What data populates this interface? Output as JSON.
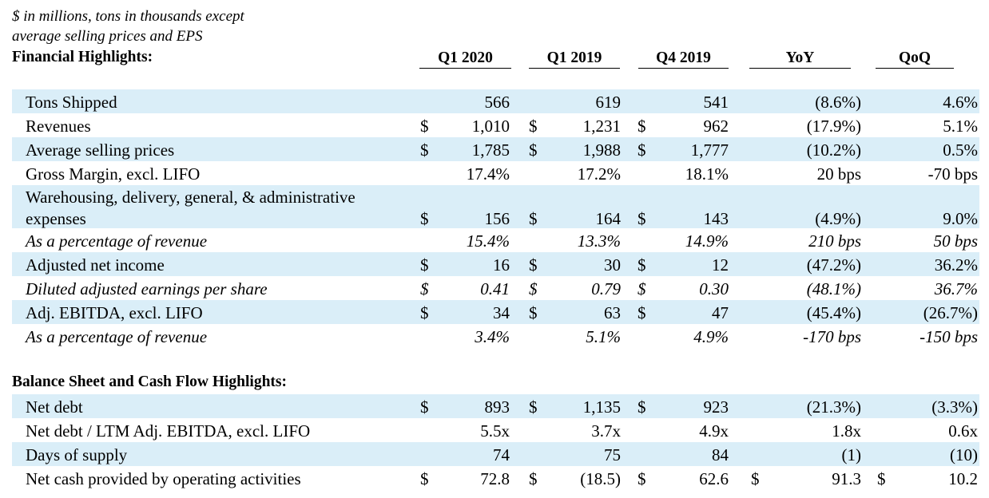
{
  "header": {
    "note_line1": "$ in millions, tons in thousands except",
    "note_line2": "average selling prices and EPS",
    "section1_title": "Financial Highlights:",
    "section2_title": "Balance Sheet and Cash Flow Highlights:",
    "columns": [
      "Q1 2020",
      "Q1 2019",
      "Q4 2019",
      "YoY",
      "QoQ"
    ]
  },
  "rows": [
    {
      "label": "Tons Shipped",
      "d1": "",
      "q1_2020": "566",
      "d2": "",
      "q1_2019": "619",
      "d3": "",
      "q4_2019": "541",
      "d4": "",
      "yoy": "(8.6%)",
      "d5": "",
      "qoq": "4.6%"
    },
    {
      "label": "Revenues",
      "d1": "$",
      "q1_2020": "1,010",
      "d2": "$",
      "q1_2019": "1,231",
      "d3": "$",
      "q4_2019": "962",
      "d4": "",
      "yoy": "(17.9%)",
      "d5": "",
      "qoq": "5.1%"
    },
    {
      "label": "Average selling prices",
      "d1": "$",
      "q1_2020": "1,785",
      "d2": "$",
      "q1_2019": "1,988",
      "d3": "$",
      "q4_2019": "1,777",
      "d4": "",
      "yoy": "(10.2%)",
      "d5": "",
      "qoq": "0.5%"
    },
    {
      "label": "Gross Margin, excl. LIFO",
      "d1": "",
      "q1_2020": "17.4%",
      "d2": "",
      "q1_2019": "17.2%",
      "d3": "",
      "q4_2019": "18.1%",
      "d4": "",
      "yoy": "20 bps",
      "d5": "",
      "qoq": "-70 bps"
    },
    {
      "label": "Warehousing, delivery, general, & administrative expenses",
      "d1": "$",
      "q1_2020": "156",
      "d2": "$",
      "q1_2019": "164",
      "d3": "$",
      "q4_2019": "143",
      "d4": "",
      "yoy": "(4.9%)",
      "d5": "",
      "qoq": "9.0%"
    },
    {
      "label": "As a percentage of revenue",
      "d1": "",
      "q1_2020": "15.4%",
      "d2": "",
      "q1_2019": "13.3%",
      "d3": "",
      "q4_2019": "14.9%",
      "d4": "",
      "yoy": "210 bps",
      "d5": "",
      "qoq": "50 bps"
    },
    {
      "label": "Adjusted net income",
      "d1": "$",
      "q1_2020": "16",
      "d2": "$",
      "q1_2019": "30",
      "d3": "$",
      "q4_2019": "12",
      "d4": "",
      "yoy": "(47.2%)",
      "d5": "",
      "qoq": "36.2%"
    },
    {
      "label": "Diluted adjusted earnings per share",
      "d1": "$",
      "q1_2020": "0.41",
      "d2": "$",
      "q1_2019": "0.79",
      "d3": "$",
      "q4_2019": "0.30",
      "d4": "",
      "yoy": "(48.1%)",
      "d5": "",
      "qoq": "36.7%"
    },
    {
      "label": "Adj. EBITDA, excl. LIFO",
      "d1": "$",
      "q1_2020": "34",
      "d2": "$",
      "q1_2019": "63",
      "d3": "$",
      "q4_2019": "47",
      "d4": "",
      "yoy": "(45.4%)",
      "d5": "",
      "qoq": "(26.7%)"
    },
    {
      "label": "As a percentage of revenue",
      "d1": "",
      "q1_2020": "3.4%",
      "d2": "",
      "q1_2019": "5.1%",
      "d3": "",
      "q4_2019": "4.9%",
      "d4": "",
      "yoy": "-170 bps",
      "d5": "",
      "qoq": "-150 bps"
    },
    {
      "label": "Net debt",
      "d1": "$",
      "q1_2020": "893",
      "d2": "$",
      "q1_2019": "1,135",
      "d3": "$",
      "q4_2019": "923",
      "d4": "",
      "yoy": "(21.3%)",
      "d5": "",
      "qoq": "(3.3%)"
    },
    {
      "label": "Net debt / LTM Adj. EBITDA, excl. LIFO",
      "d1": "",
      "q1_2020": "5.5x",
      "d2": "",
      "q1_2019": "3.7x",
      "d3": "",
      "q4_2019": "4.9x",
      "d4": "",
      "yoy": "1.8x",
      "d5": "",
      "qoq": "0.6x"
    },
    {
      "label": "Days of supply",
      "d1": "",
      "q1_2020": "74",
      "d2": "",
      "q1_2019": "75",
      "d3": "",
      "q4_2019": "84",
      "d4": "",
      "yoy": "(1)",
      "d5": "",
      "qoq": "(10)"
    },
    {
      "label": "Net cash provided by operating activities",
      "d1": "$",
      "q1_2020": "72.8",
      "d2": "$",
      "q1_2019": "(18.5)",
      "d3": "$",
      "q4_2019": "62.6",
      "d4": "$",
      "yoy": "91.3",
      "d5": "$",
      "qoq": "10.2"
    }
  ]
}
